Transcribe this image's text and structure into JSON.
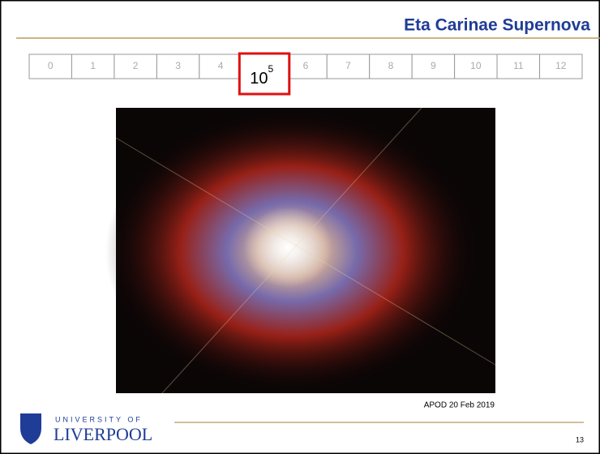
{
  "title": "Eta Carinae Supernova",
  "scale": {
    "cells": [
      "0",
      "1",
      "2",
      "3",
      "4",
      null,
      "6",
      "7",
      "8",
      "9",
      "10",
      "11",
      "12"
    ],
    "highlight": {
      "base": "10",
      "exponent": "5"
    }
  },
  "image": {
    "caption": "APOD  20 Feb 2019"
  },
  "footer": {
    "university_line1": "UNIVERSITY OF",
    "university_line2": "LIVERPOOL",
    "page_number": "13"
  }
}
